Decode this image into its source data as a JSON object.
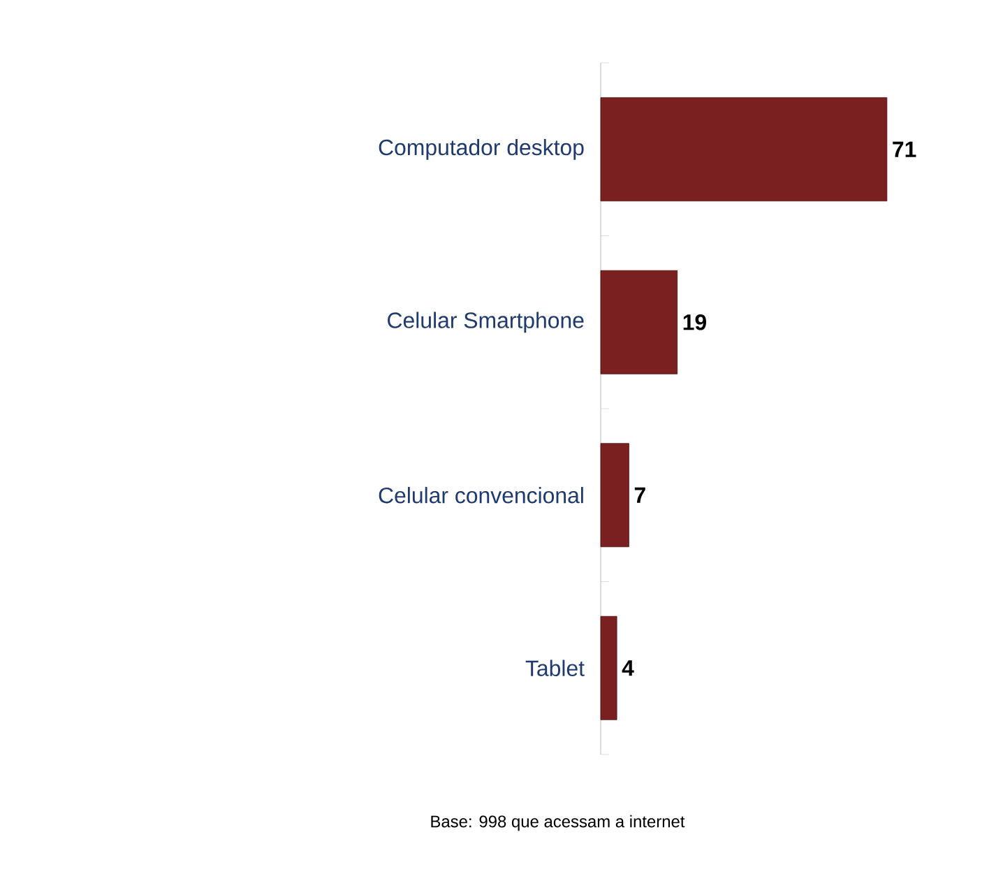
{
  "chart_data": {
    "type": "bar",
    "orientation": "horizontal",
    "categories": [
      "Computador desktop",
      "Celular Smartphone",
      "Celular convencional",
      "Tablet"
    ],
    "values": [
      71,
      19,
      7,
      4
    ],
    "color": "#7b2020",
    "data_labels": true,
    "annotations": [
      "Base: 998 que acessam a internet"
    ]
  }
}
